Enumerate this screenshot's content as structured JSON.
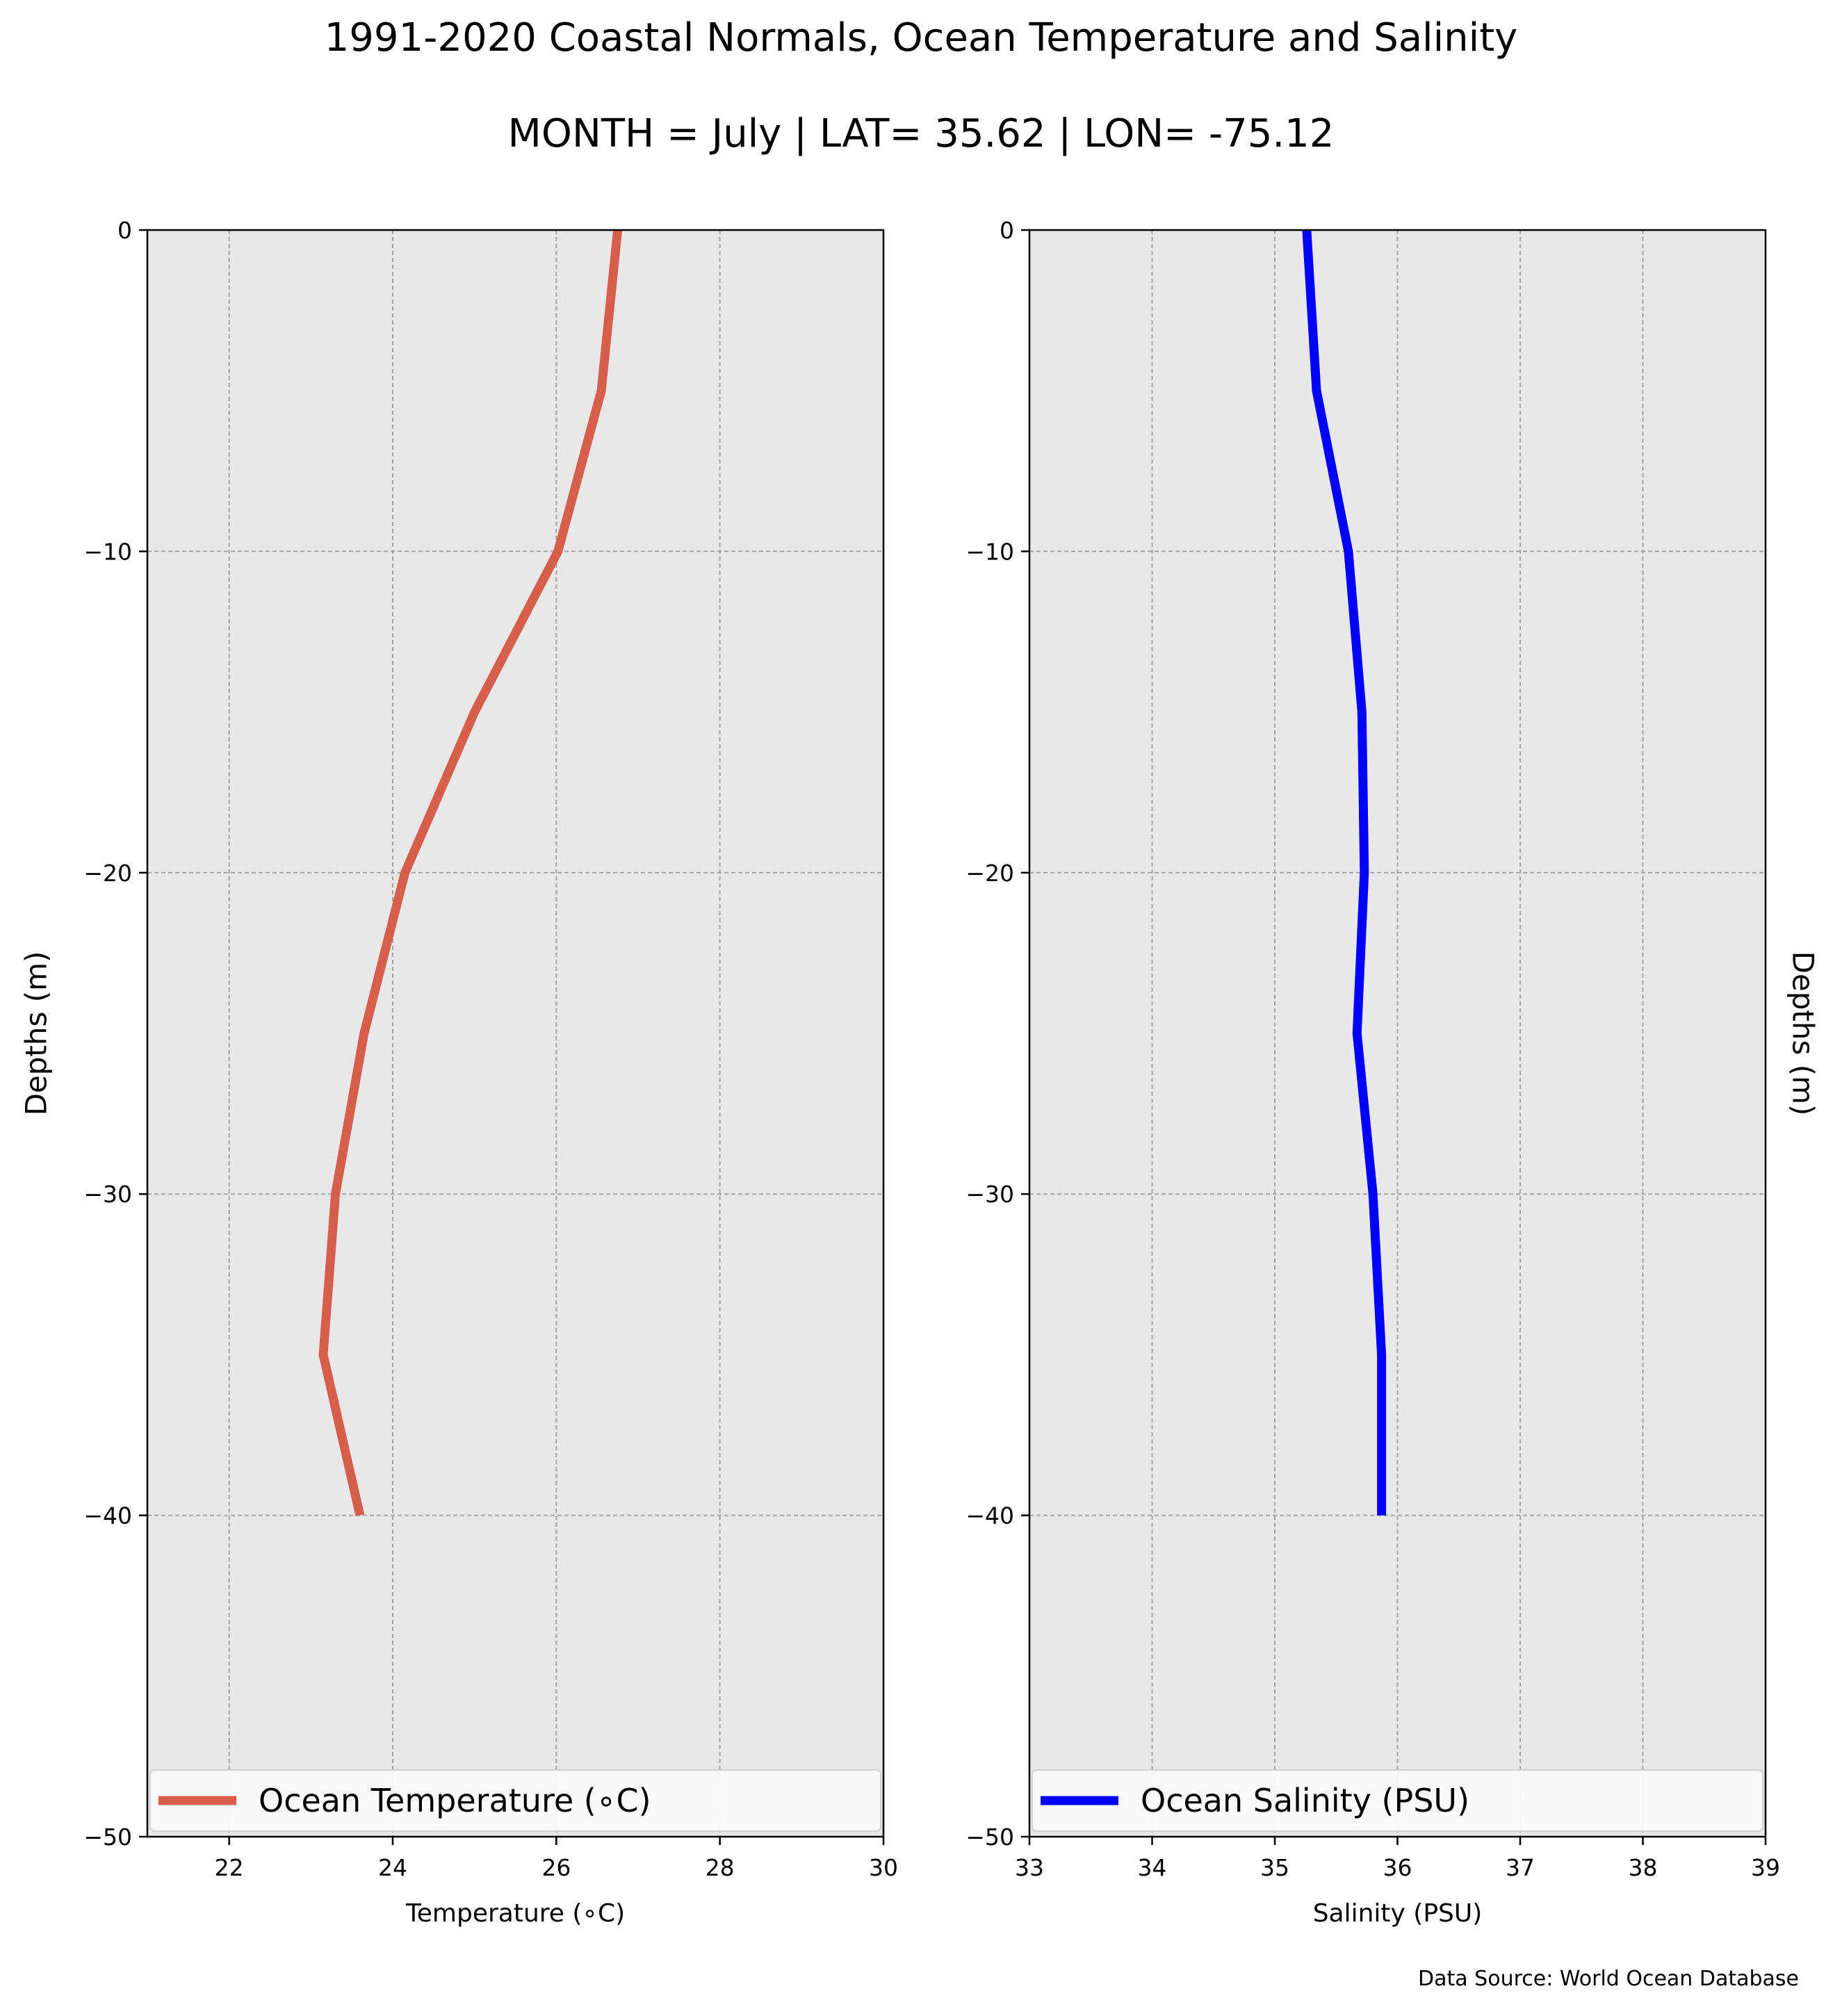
{
  "header": {
    "title": "1991-2020 Coastal Normals, Ocean Temperature and Salinity",
    "subtitle": "MONTH = July | LAT= 35.62 | LON= -75.12"
  },
  "footer": {
    "source": "Data Source: World Ocean Database"
  },
  "chart_data": [
    {
      "type": "line",
      "xlabel": "Temperature (∘C)",
      "ylabel": "Depths (m)",
      "xlim": [
        21,
        30
      ],
      "ylim": [
        -50,
        0
      ],
      "xticks": [
        22,
        24,
        26,
        28,
        30
      ],
      "yticks": [
        0,
        -10,
        -20,
        -30,
        -40,
        -50
      ],
      "grid": true,
      "legend_position": "bottom",
      "series": [
        {
          "name": "Ocean Temperature (∘C)",
          "color": "#d65f4c",
          "x": [
            26.75,
            26.55,
            26.02,
            25.0,
            24.15,
            23.65,
            23.3,
            23.15,
            23.6
          ],
          "y": [
            0,
            -5,
            -10,
            -15,
            -20,
            -25,
            -30,
            -35,
            -40
          ]
        }
      ]
    },
    {
      "type": "line",
      "xlabel": "Salinity (PSU)",
      "ylabel": "Depths (m)",
      "xlim": [
        33,
        39
      ],
      "ylim": [
        -50,
        0
      ],
      "xticks": [
        33,
        34,
        35,
        36,
        37,
        38,
        39
      ],
      "yticks": [
        0,
        -10,
        -20,
        -30,
        -40,
        -50
      ],
      "grid": true,
      "legend_position": "bottom",
      "series": [
        {
          "name": "Ocean Salinity (PSU)",
          "color": "#0000ff",
          "x": [
            35.26,
            35.34,
            35.6,
            35.71,
            35.73,
            35.67,
            35.8,
            35.87,
            35.87
          ],
          "y": [
            0,
            -5,
            -10,
            -15,
            -20,
            -25,
            -30,
            -35,
            -40
          ]
        }
      ]
    }
  ]
}
